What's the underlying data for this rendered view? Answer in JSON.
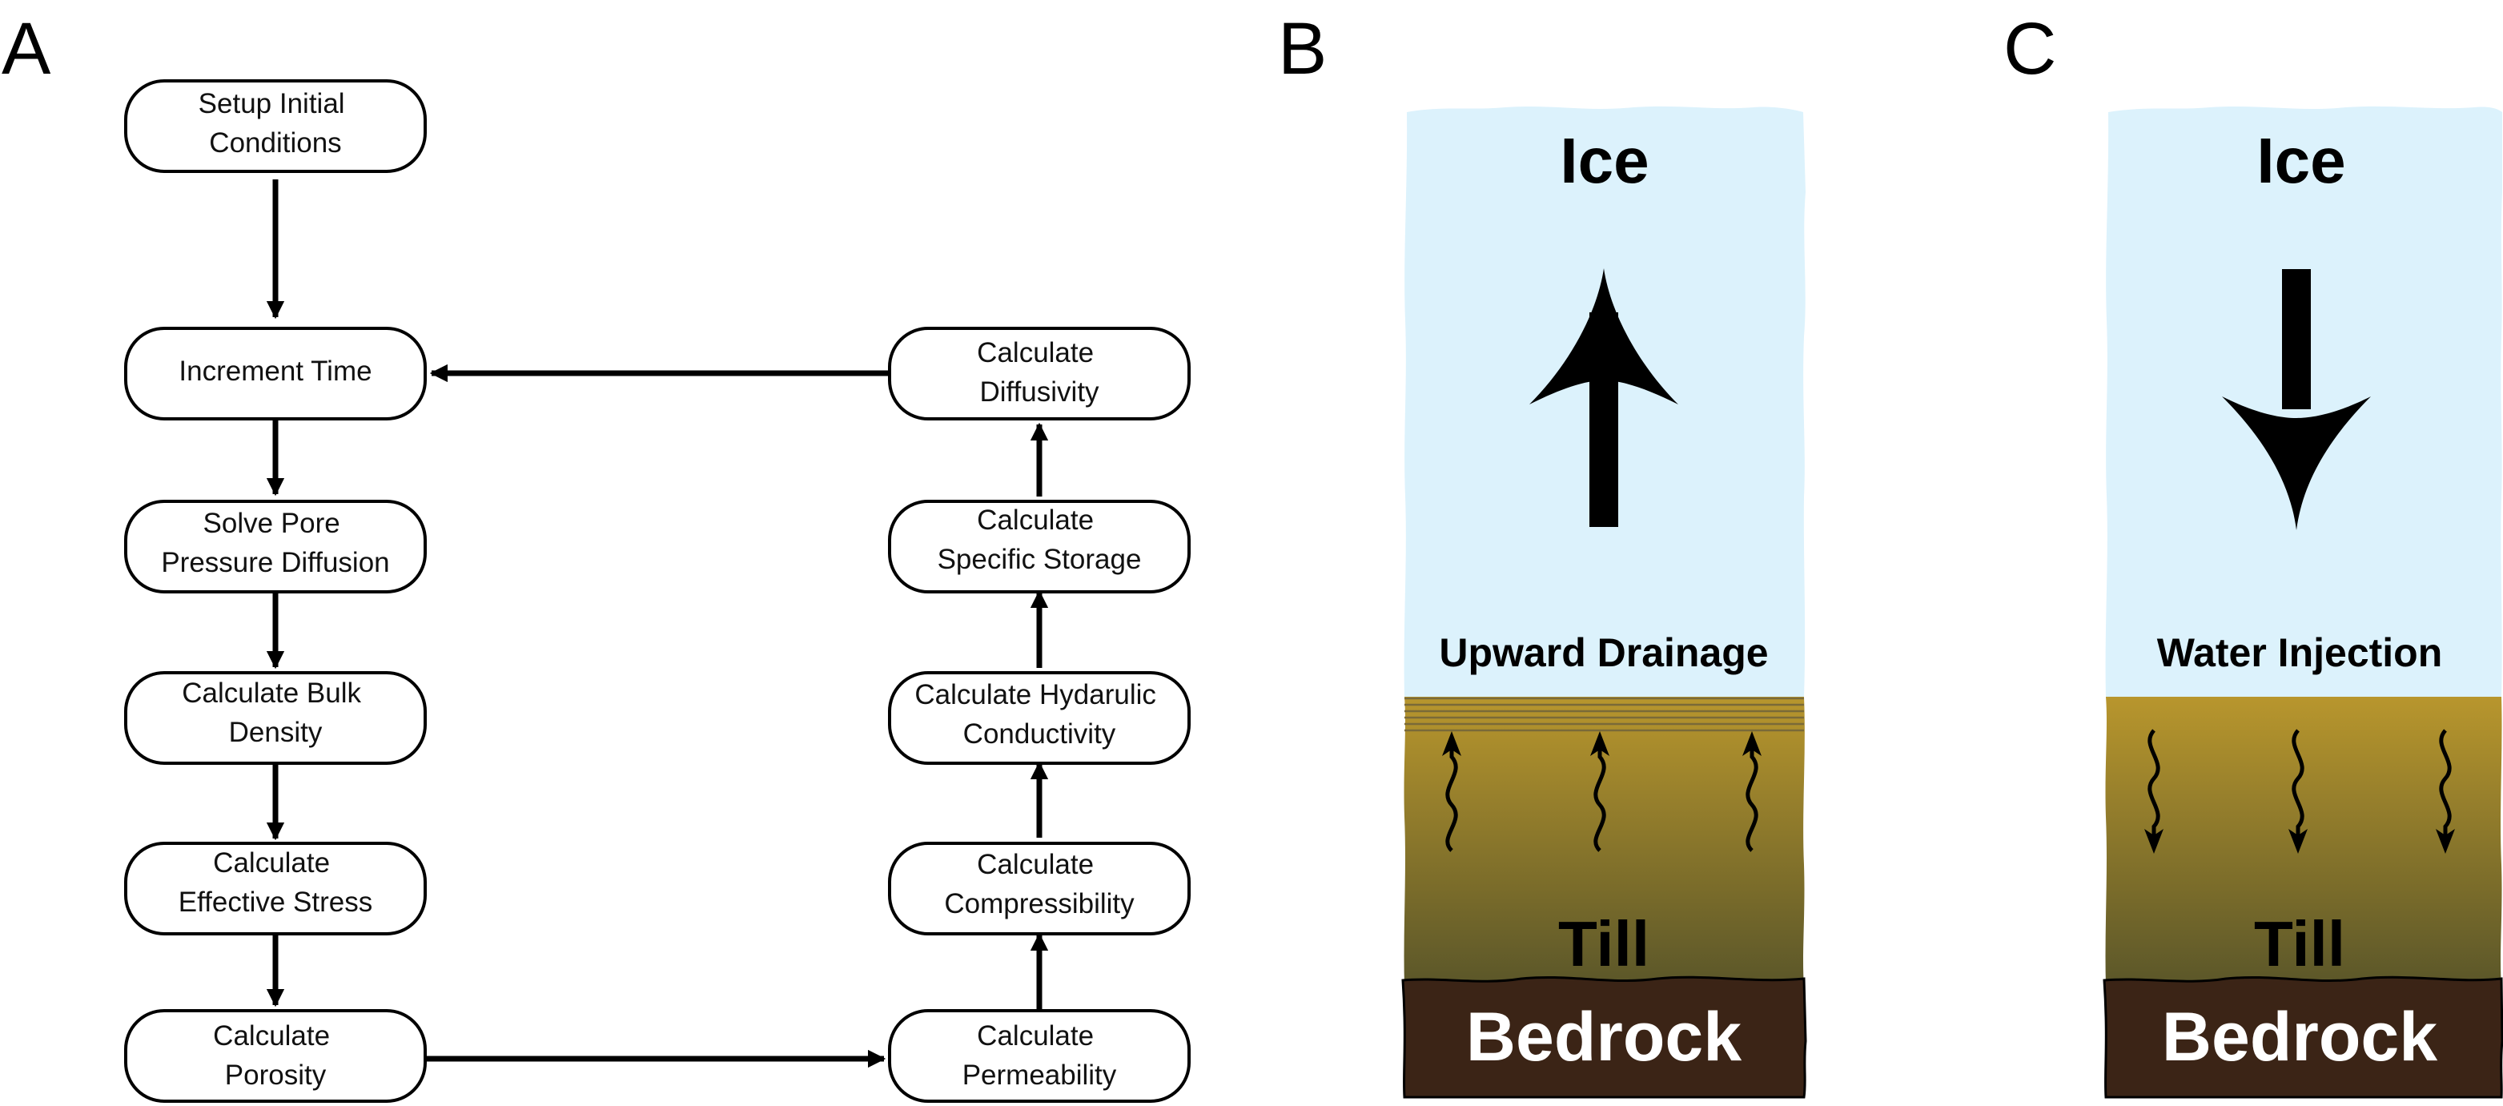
{
  "panel_a": {
    "letter": "A",
    "boxes": {
      "setup": [
        "Setup Initial",
        "Conditions"
      ],
      "increment": [
        "Increment Time"
      ],
      "solve": [
        "Solve Pore",
        "Pressure Diffusion"
      ],
      "bulk_density": [
        "Calculate Bulk",
        "Density"
      ],
      "effective_stress": [
        "Calculate",
        "Effective Stress"
      ],
      "porosity": [
        "Calculate",
        "Porosity"
      ],
      "permeability": [
        "Calculate",
        "Permeability"
      ],
      "compressibility": [
        "Calculate",
        "Compressibility"
      ],
      "conductivity": [
        "Calculate Hydarulic",
        "Conductivity"
      ],
      "specific_storage": [
        "Calculate",
        "Specific Storage"
      ],
      "diffusivity": [
        "Calculate",
        "Diffusivity"
      ]
    }
  },
  "panel_b": {
    "letter": "B",
    "ice_label": "Ice",
    "flow_label": "Upward Drainage",
    "till_label": "Till",
    "bedrock_label": "Bedrock"
  },
  "panel_c": {
    "letter": "C",
    "ice_label": "Ice",
    "flow_label": "Water Injection",
    "till_label": "Till",
    "bedrock_label": "Bedrock"
  },
  "colors": {
    "ice": "#dcf2fc",
    "till_top": "#b8962d",
    "till_bottom": "#5a5629",
    "bedrock": "#3b2416"
  }
}
